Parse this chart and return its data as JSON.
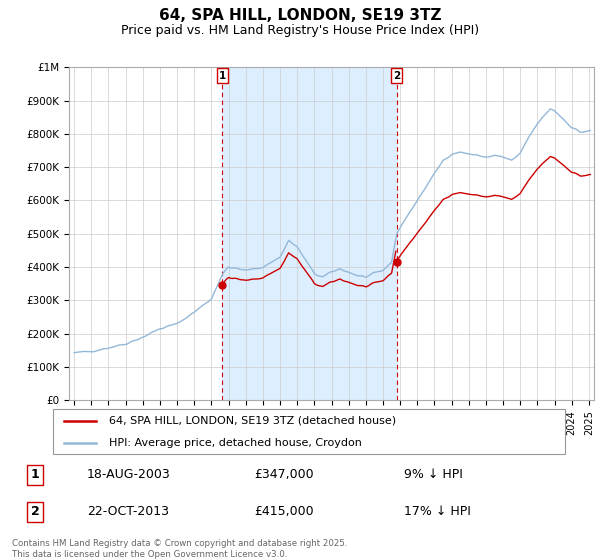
{
  "title": "64, SPA HILL, LONDON, SE19 3TZ",
  "subtitle": "Price paid vs. HM Land Registry's House Price Index (HPI)",
  "title_fontsize": 11,
  "subtitle_fontsize": 9,
  "background_color": "#ffffff",
  "grid_color": "#cccccc",
  "hpi_color": "#94b8d8",
  "price_color": "#cc0000",
  "shade_color": "#ddeeff",
  "vline_color": "#cc0000",
  "ylim": [
    0,
    1000000
  ],
  "yticks": [
    0,
    100000,
    200000,
    300000,
    400000,
    500000,
    600000,
    700000,
    800000,
    900000,
    1000000
  ],
  "ytick_labels": [
    "£0",
    "£100K",
    "£200K",
    "£300K",
    "£400K",
    "£500K",
    "£600K",
    "£700K",
    "£800K",
    "£900K",
    "£1M"
  ],
  "xlim_start": 1994.7,
  "xlim_end": 2025.3,
  "purchase1_year": 2003.63,
  "purchase1_price": 347000,
  "purchase2_year": 2013.8,
  "purchase2_price": 415000,
  "legend_label_price": "64, SPA HILL, LONDON, SE19 3TZ (detached house)",
  "legend_label_hpi": "HPI: Average price, detached house, Croydon",
  "annotation1_date": "18-AUG-2003",
  "annotation1_price": "£347,000",
  "annotation1_hpi": "9% ↓ HPI",
  "annotation2_date": "22-OCT-2013",
  "annotation2_price": "£415,000",
  "annotation2_hpi": "17% ↓ HPI",
  "footer": "Contains HM Land Registry data © Crown copyright and database right 2025.\nThis data is licensed under the Open Government Licence v3.0."
}
